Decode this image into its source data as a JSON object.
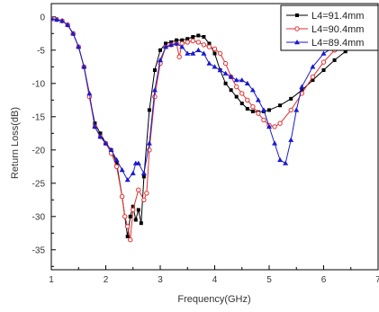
{
  "chart_data": {
    "type": "line",
    "title": "",
    "xlabel": "Frequency(GHz)",
    "ylabel": "Return Loss(dB)",
    "xlim": [
      1,
      7
    ],
    "ylim": [
      -38,
      2
    ],
    "x_ticks": [
      1,
      2,
      3,
      4,
      5,
      6,
      7
    ],
    "x_tick_labels": [
      "1",
      "2",
      "3",
      "4",
      "5",
      "6",
      "7"
    ],
    "y_ticks": [
      0,
      -5,
      -10,
      -15,
      -20,
      -25,
      -30,
      -35
    ],
    "y_tick_labels": [
      "0",
      "-5",
      "-10",
      "-15",
      "-20",
      "-25",
      "-30",
      "-35"
    ],
    "grid": false,
    "legend_position": "top-right",
    "series": [
      {
        "name": "L4=91.4mm",
        "color": "#000000",
        "marker": "square",
        "x": [
          1.0,
          1.1,
          1.2,
          1.3,
          1.4,
          1.5,
          1.6,
          1.7,
          1.8,
          1.9,
          2.0,
          2.1,
          2.2,
          2.3,
          2.4,
          2.45,
          2.5,
          2.55,
          2.6,
          2.65,
          2.7,
          2.8,
          2.9,
          3.0,
          3.1,
          3.2,
          3.3,
          3.4,
          3.5,
          3.6,
          3.7,
          3.8,
          3.9,
          4.0,
          4.1,
          4.2,
          4.3,
          4.4,
          4.5,
          4.6,
          4.7,
          4.8,
          4.9,
          5.0,
          5.2,
          5.4,
          5.6,
          5.8,
          6.0,
          6.2,
          6.4,
          6.6,
          6.8,
          7.0
        ],
        "y": [
          -0.3,
          -0.4,
          -0.6,
          -1.2,
          -2.5,
          -4.5,
          -7.5,
          -12.0,
          -16.0,
          -17.5,
          -19.0,
          -20.0,
          -22.0,
          -27.0,
          -33.0,
          -30.0,
          -28.5,
          -30.5,
          -29.0,
          -31.0,
          -24.0,
          -14.0,
          -8.0,
          -5.0,
          -4.0,
          -3.8,
          -3.5,
          -3.5,
          -3.3,
          -3.0,
          -2.8,
          -3.0,
          -4.0,
          -5.5,
          -8.0,
          -10.0,
          -11.0,
          -12.0,
          -13.0,
          -13.8,
          -14.2,
          -14.3,
          -14.2,
          -14.0,
          -13.3,
          -12.3,
          -11.0,
          -9.5,
          -8.0,
          -6.5,
          -5.2,
          -4.5,
          -4.2,
          -4.0
        ]
      },
      {
        "name": "L4=90.4mm",
        "color": "#e03030",
        "marker": "circle",
        "x": [
          1.0,
          1.1,
          1.2,
          1.3,
          1.4,
          1.5,
          1.6,
          1.7,
          1.8,
          1.9,
          2.0,
          2.1,
          2.2,
          2.3,
          2.35,
          2.4,
          2.45,
          2.5,
          2.6,
          2.7,
          2.75,
          2.8,
          2.9,
          3.0,
          3.1,
          3.2,
          3.3,
          3.35,
          3.4,
          3.5,
          3.6,
          3.7,
          3.8,
          3.9,
          4.0,
          4.1,
          4.2,
          4.3,
          4.4,
          4.5,
          4.6,
          4.7,
          4.8,
          4.9,
          5.0,
          5.1,
          5.2,
          5.4,
          5.6,
          5.8,
          6.0,
          6.2,
          6.4,
          6.6,
          6.8,
          7.0
        ],
        "y": [
          -0.3,
          -0.4,
          -0.6,
          -1.2,
          -2.5,
          -4.5,
          -7.5,
          -12.0,
          -16.5,
          -18.0,
          -19.0,
          -20.5,
          -22.5,
          -27.0,
          -30.0,
          -31.5,
          -33.5,
          -29.0,
          -26.0,
          -27.5,
          -26.5,
          -20.0,
          -12.0,
          -7.0,
          -4.5,
          -4.2,
          -4.0,
          -6.0,
          -4.0,
          -3.8,
          -3.6,
          -3.8,
          -4.2,
          -4.5,
          -4.8,
          -5.5,
          -7.0,
          -9.0,
          -10.5,
          -11.5,
          -12.5,
          -13.5,
          -14.5,
          -15.5,
          -16.3,
          -16.5,
          -16.0,
          -14.0,
          -11.5,
          -9.0,
          -6.8,
          -5.0,
          -4.0,
          -3.6,
          -3.5,
          -3.5
        ]
      },
      {
        "name": "L4=89.4mm",
        "color": "#1a1acc",
        "marker": "triangle",
        "x": [
          1.0,
          1.1,
          1.2,
          1.3,
          1.4,
          1.5,
          1.6,
          1.7,
          1.8,
          1.9,
          2.0,
          2.1,
          2.2,
          2.3,
          2.4,
          2.5,
          2.55,
          2.6,
          2.7,
          2.8,
          2.9,
          3.0,
          3.1,
          3.2,
          3.3,
          3.4,
          3.5,
          3.6,
          3.7,
          3.8,
          3.9,
          4.0,
          4.1,
          4.2,
          4.3,
          4.4,
          4.5,
          4.6,
          4.7,
          4.8,
          4.9,
          5.0,
          5.1,
          5.2,
          5.3,
          5.4,
          5.5,
          5.6,
          5.8,
          6.0,
          6.2,
          6.4,
          6.6,
          6.8,
          7.0
        ],
        "y": [
          -0.3,
          -0.4,
          -0.6,
          -1.2,
          -2.5,
          -4.5,
          -7.5,
          -11.5,
          -16.5,
          -18.0,
          -19.0,
          -20.0,
          -21.5,
          -23.0,
          -24.5,
          -23.5,
          -22.0,
          -22.0,
          -23.5,
          -19.0,
          -11.0,
          -6.5,
          -4.5,
          -4.2,
          -4.0,
          -4.5,
          -5.5,
          -5.5,
          -5.0,
          -5.5,
          -7.0,
          -7.5,
          -8.0,
          -8.5,
          -9.0,
          -9.5,
          -9.5,
          -10.0,
          -11.0,
          -12.5,
          -14.0,
          -16.5,
          -19.0,
          -21.5,
          -22.0,
          -18.5,
          -14.0,
          -10.5,
          -7.5,
          -5.5,
          -4.5,
          -3.8,
          -3.3,
          -3.0,
          -3.0
        ]
      }
    ]
  }
}
